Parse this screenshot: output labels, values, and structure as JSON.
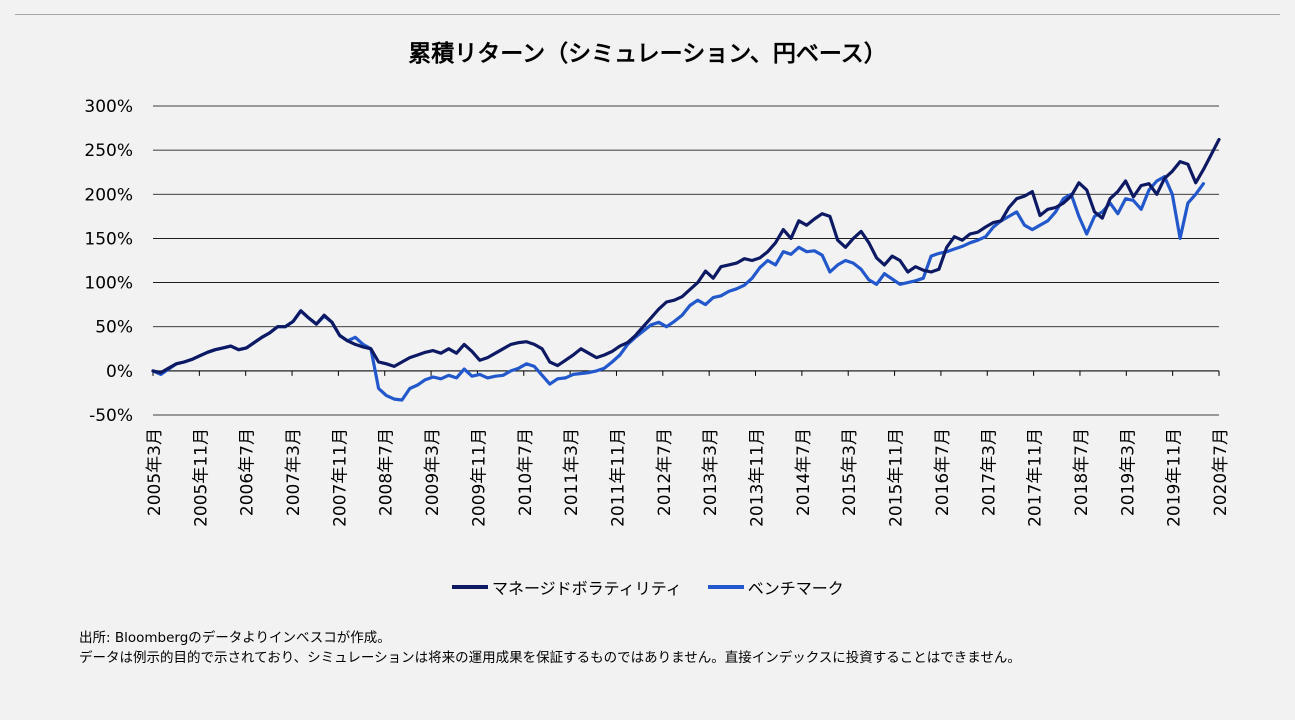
{
  "chart_data": {
    "type": "line",
    "title": "累積リターン（シミュレーション、円ベース）",
    "ylim": [
      -50,
      300
    ],
    "y_ticks": [
      "300%",
      "250%",
      "200%",
      "150%",
      "100%",
      "50%",
      "0%",
      "-50%"
    ],
    "x_tick_labels": [
      "2005年3月",
      "2005年11月",
      "2006年7月",
      "2007年3月",
      "2007年11月",
      "2008年7月",
      "2009年3月",
      "2009年11月",
      "2010年7月",
      "2011年3月",
      "2011年11月",
      "2012年7月",
      "2013年3月",
      "2013年11月",
      "2014年7月",
      "2015年3月",
      "2015年11月",
      "2016年7月",
      "2017年3月",
      "2017年11月",
      "2018年7月",
      "2019年3月",
      "2019年11月",
      "2020年7月"
    ],
    "grid": true,
    "legend_position": "bottom",
    "series": [
      {
        "name": "マネージドボラティリティ",
        "color": "#0d1a63",
        "values": [
          0,
          -2,
          3,
          8,
          10,
          13,
          17,
          21,
          24,
          26,
          28,
          24,
          26,
          32,
          38,
          43,
          50,
          50,
          56,
          68,
          60,
          53,
          63,
          55,
          40,
          34,
          30,
          27,
          25,
          10,
          8,
          5,
          10,
          15,
          18,
          21,
          23,
          20,
          25,
          20,
          30,
          22,
          12,
          15,
          20,
          25,
          30,
          32,
          33,
          30,
          25,
          10,
          6,
          12,
          18,
          25,
          20,
          15,
          18,
          22,
          28,
          32,
          40,
          50,
          60,
          70,
          78,
          80,
          84,
          92,
          100,
          113,
          105,
          118,
          120,
          122,
          127,
          125,
          128,
          135,
          145,
          160,
          150,
          170,
          165,
          172,
          178,
          175,
          148,
          140,
          150,
          158,
          145,
          128,
          120,
          130,
          125,
          112,
          118,
          114,
          112,
          115,
          140,
          152,
          148,
          155,
          157,
          163,
          168,
          170,
          185,
          195,
          198,
          203,
          176,
          183,
          185,
          190,
          198,
          213,
          205,
          180,
          173,
          195,
          203,
          215,
          197,
          210,
          212,
          200,
          218,
          226,
          237,
          234,
          213,
          228,
          245,
          262
        ]
      },
      {
        "name": "ベンチマーク",
        "color": "#2258cc",
        "values": [
          0,
          -4,
          2,
          8,
          10,
          13,
          17,
          21,
          24,
          26,
          28,
          24,
          26,
          32,
          38,
          43,
          50,
          50,
          56,
          68,
          60,
          53,
          62,
          55,
          40,
          34,
          38,
          30,
          25,
          -20,
          -28,
          -32,
          -33,
          -20,
          -16,
          -10,
          -7,
          -9,
          -5,
          -8,
          2,
          -6,
          -4,
          -8,
          -6,
          -5,
          0,
          3,
          8,
          5,
          -5,
          -15,
          -9,
          -8,
          -4,
          -3,
          -2,
          0,
          3,
          10,
          18,
          30,
          38,
          45,
          52,
          55,
          50,
          56,
          63,
          74,
          80,
          75,
          83,
          85,
          90,
          93,
          97,
          105,
          117,
          125,
          120,
          135,
          132,
          140,
          135,
          136,
          131,
          112,
          120,
          125,
          122,
          115,
          103,
          98,
          110,
          104,
          98,
          100,
          102,
          105,
          130,
          133,
          135,
          138,
          141,
          145,
          148,
          152,
          163,
          170,
          175,
          180,
          165,
          160,
          165,
          170,
          180,
          195,
          200,
          175,
          155,
          175,
          180,
          190,
          178,
          195,
          193,
          183,
          205,
          215,
          220,
          200,
          150,
          190,
          200,
          212
        ]
      }
    ]
  },
  "footnotes": {
    "line1": "出所: Bloombergのデータよりインベスコが作成。",
    "line2": "データは例示的目的で示されており、シミュレーションは将来の運用成果を保証するものではありません。直接インデックスに投資することはできません。"
  }
}
